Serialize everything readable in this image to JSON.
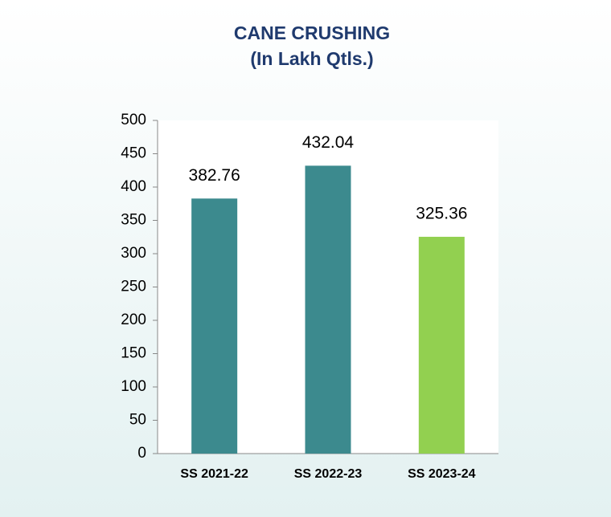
{
  "chart_data": {
    "type": "bar",
    "title": "CANE CRUSHING",
    "subtitle": "(In Lakh Qtls.)",
    "categories": [
      "SS 2021-22",
      "SS 2022-23",
      "SS 2023-24"
    ],
    "values": [
      382.76,
      432.04,
      325.36
    ],
    "colors": [
      "#3c8a8e",
      "#3c8a8e",
      "#92d050"
    ],
    "ylim": [
      0,
      500
    ],
    "yticks": [
      0,
      50,
      100,
      150,
      200,
      250,
      300,
      350,
      400,
      450,
      500
    ],
    "grid": false
  }
}
